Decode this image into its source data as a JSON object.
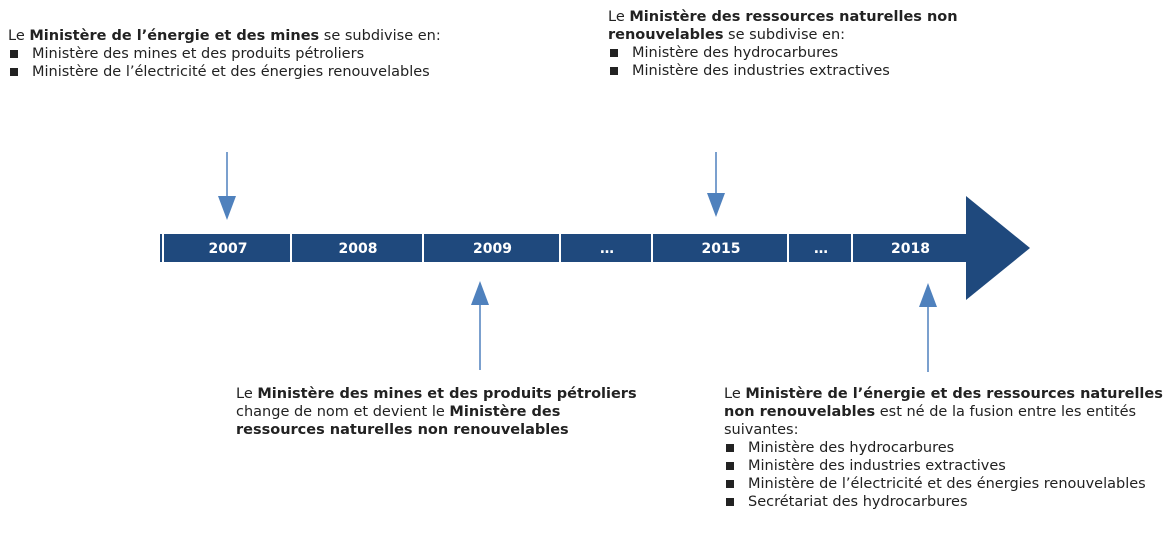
{
  "timeline": {
    "segments": [
      "2007",
      "2008",
      "2009",
      "…",
      "2015",
      "…",
      "2018"
    ]
  },
  "notes": [
    {
      "intro": [
        {
          "text": "Le "
        },
        {
          "text": "Ministère de l’énergie et des mines",
          "bold": true
        },
        {
          "text": " se subdivise en:"
        }
      ],
      "items": [
        "Ministère des mines  et des produits pétroliers",
        "Ministère de l’électricité et des énergies renouvelables"
      ]
    },
    {
      "intro": [
        {
          "text": "Le "
        },
        {
          "text": "Ministère des ressources naturelles non renouvelables",
          "bold": true
        },
        {
          "text": " se subdivise en:"
        }
      ],
      "items": [
        "Ministère des hydrocarbures",
        "Ministère des industries extractives"
      ]
    },
    {
      "intro": [
        {
          "text": "Le "
        },
        {
          "text": "Ministère des mines et des produits pétroliers",
          "bold": true
        },
        {
          "text": " change de nom et devient le "
        },
        {
          "text": "Ministère des ressources naturelles non renouvelables",
          "bold": true
        }
      ],
      "items": []
    },
    {
      "intro": [
        {
          "text": "Le "
        },
        {
          "text": "Ministère de l’énergie et des ressources naturelles non renouvelables",
          "bold": true
        },
        {
          "text": " est né de la fusion entre les entités suivantes:"
        }
      ],
      "items": [
        "Ministère des hydrocarbures",
        "Ministère des industries extractives",
        "Ministère de l’électricité et des énergies renouvelables",
        "Secrétariat des hydrocarbures"
      ]
    }
  ]
}
